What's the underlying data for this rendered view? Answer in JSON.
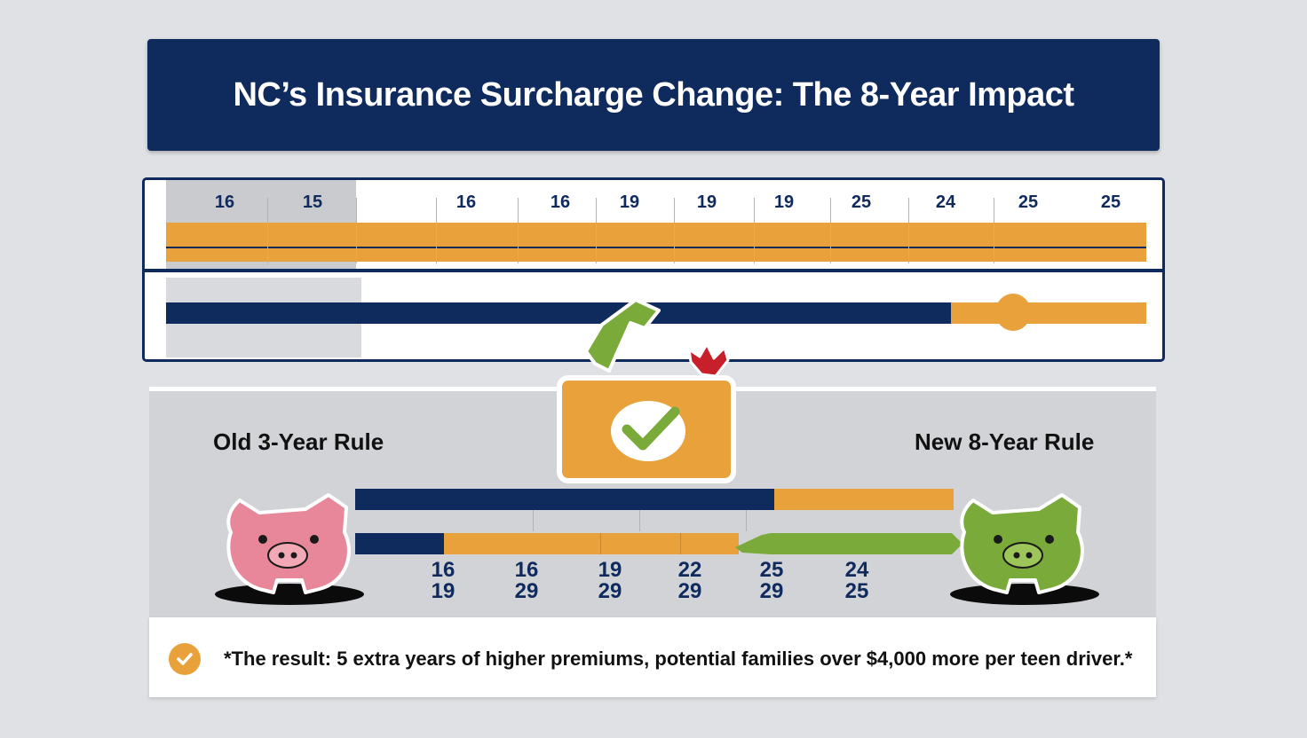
{
  "title": "NC’s Insurance Surcharge Change: The 8-Year Impact",
  "timeline": {
    "years": [
      "16",
      "15",
      "16",
      "16",
      "19",
      "19",
      "19",
      "25",
      "24",
      "25",
      "25"
    ]
  },
  "comparison": {
    "old_rule_label": "Old 3-Year Rule",
    "new_rule_label": "New 8-Year Rule",
    "pairs": [
      {
        "top": "16",
        "bottom": "19"
      },
      {
        "top": "16",
        "bottom": "29"
      },
      {
        "top": "19",
        "bottom": "29"
      },
      {
        "top": "22",
        "bottom": "29"
      },
      {
        "top": "25",
        "bottom": "29"
      },
      {
        "top": "24",
        "bottom": "25"
      }
    ]
  },
  "result": {
    "text": "*The result: 5 extra years of higher premiums, potential families over $4,000 more per teen driver.*"
  },
  "colors": {
    "navy": "#0f2a5c",
    "orange": "#e9a23b",
    "green": "#7aab3a",
    "pink": "#e8879a",
    "red": "#c8202a"
  },
  "icons": [
    "checkmark-icon",
    "folder-icon",
    "pink-piggy-bank-icon",
    "green-piggy-bank-icon",
    "check-circle-icon"
  ]
}
